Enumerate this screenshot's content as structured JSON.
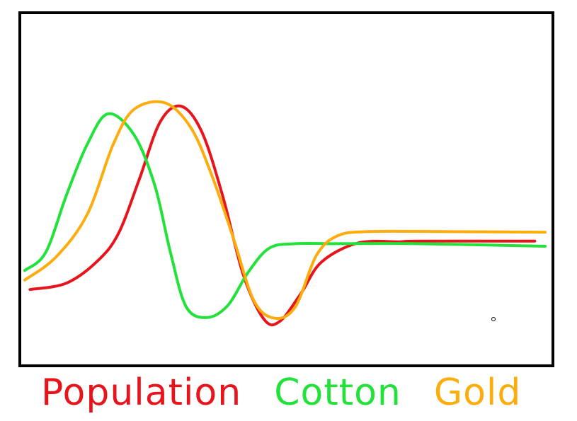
{
  "chart_data": {
    "type": "line",
    "title": "",
    "xlabel": "",
    "ylabel": "",
    "grid": false,
    "legend_placement": "bottom-left",
    "x_range": [
      0,
      100
    ],
    "y_range": [
      0,
      100
    ],
    "series": [
      {
        "name": "Population",
        "color": "#e8141c",
        "points": [
          [
            1,
            22.4
          ],
          [
            8,
            24.4
          ],
          [
            14,
            31.4
          ],
          [
            18,
            40
          ],
          [
            22,
            57
          ],
          [
            26,
            75
          ],
          [
            30,
            80
          ],
          [
            34,
            72
          ],
          [
            38,
            52
          ],
          [
            42,
            27
          ],
          [
            46,
            13
          ],
          [
            49,
            12.4
          ],
          [
            53,
            21
          ],
          [
            57,
            31
          ],
          [
            64,
            37
          ],
          [
            72,
            37.4
          ],
          [
            76,
            37.6
          ],
          [
            98,
            37.6
          ]
        ]
      },
      {
        "name": "Cotton",
        "color": "#22e23a",
        "points": [
          [
            0,
            28.4
          ],
          [
            4,
            34
          ],
          [
            8,
            52
          ],
          [
            12,
            68
          ],
          [
            16,
            77.6
          ],
          [
            21,
            71
          ],
          [
            25,
            55
          ],
          [
            28,
            34
          ],
          [
            31,
            17
          ],
          [
            35,
            13.6
          ],
          [
            39,
            17.4
          ],
          [
            43,
            28
          ],
          [
            47,
            35.4
          ],
          [
            52,
            36.8
          ],
          [
            60,
            36.8
          ],
          [
            75,
            36.8
          ],
          [
            100,
            36
          ]
        ]
      },
      {
        "name": "Gold",
        "color": "#fcac0c",
        "points": [
          [
            0,
            25.4
          ],
          [
            6,
            32.6
          ],
          [
            12,
            46
          ],
          [
            17,
            68
          ],
          [
            21,
            79
          ],
          [
            27,
            81
          ],
          [
            32,
            73
          ],
          [
            36,
            58
          ],
          [
            40,
            39
          ],
          [
            44,
            19
          ],
          [
            48,
            13.4
          ],
          [
            52,
            17
          ],
          [
            56,
            33
          ],
          [
            60,
            39.2
          ],
          [
            66,
            40.6
          ],
          [
            80,
            40.6
          ],
          [
            100,
            40.4
          ]
        ]
      }
    ]
  }
}
